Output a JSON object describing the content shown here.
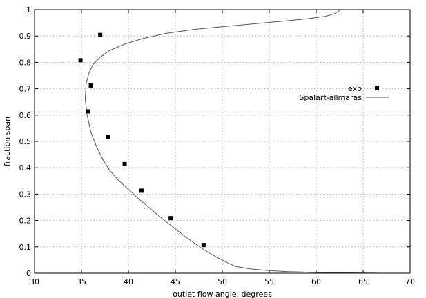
{
  "chart_data": {
    "type": "scatter",
    "xlabel": "outlet flow angle, degrees",
    "ylabel": "fraction span",
    "xlim": [
      30,
      70
    ],
    "ylim": [
      0,
      1
    ],
    "x_ticks": [
      30,
      35,
      40,
      45,
      50,
      55,
      60,
      65,
      70
    ],
    "y_ticks": [
      0,
      0.1,
      0.2,
      0.3,
      0.4,
      0.5,
      0.6,
      0.7,
      0.8,
      0.9,
      1
    ],
    "x_tick_labels": [
      "30",
      "35",
      "40",
      "45",
      "50",
      "55",
      "60",
      "65",
      "70"
    ],
    "y_tick_labels": [
      "0",
      "0.1",
      "0.2",
      "0.3",
      "0.4",
      "0.5",
      "0.6",
      "0.7",
      "0.8",
      "0.9",
      "1"
    ],
    "grid": true,
    "legend_position": "top-right",
    "series": [
      {
        "name": "exp",
        "kind": "points",
        "x": [
          48.0,
          44.5,
          41.4,
          39.6,
          37.8,
          35.7,
          36.0,
          34.9,
          37.0
        ],
        "y": [
          0.107,
          0.209,
          0.313,
          0.414,
          0.516,
          0.614,
          0.712,
          0.808,
          0.904
        ]
      },
      {
        "name": "Spalart-allmaras",
        "kind": "line",
        "x": [
          67.0,
          60.0,
          57.0,
          55.0,
          53.0,
          51.5,
          50.8,
          50.0,
          49.0,
          48.0,
          47.0,
          46.0,
          45.0,
          44.0,
          43.0,
          42.0,
          41.0,
          40.0,
          39.0,
          38.0,
          37.3,
          36.6,
          36.0,
          35.6,
          35.4,
          35.5,
          35.8,
          36.2,
          37.0,
          38.0,
          39.5,
          41.5,
          44.0,
          47.0,
          50.0,
          53.0,
          56.0,
          59.0,
          61.0,
          62.0,
          62.4,
          62.5
        ],
        "y": [
          0.0,
          0.003,
          0.006,
          0.01,
          0.016,
          0.025,
          0.035,
          0.05,
          0.068,
          0.09,
          0.115,
          0.14,
          0.168,
          0.196,
          0.225,
          0.255,
          0.285,
          0.318,
          0.35,
          0.39,
          0.43,
          0.48,
          0.535,
          0.6,
          0.66,
          0.72,
          0.76,
          0.79,
          0.82,
          0.845,
          0.868,
          0.89,
          0.91,
          0.925,
          0.935,
          0.945,
          0.955,
          0.965,
          0.975,
          0.985,
          0.995,
          1.0
        ]
      }
    ]
  }
}
